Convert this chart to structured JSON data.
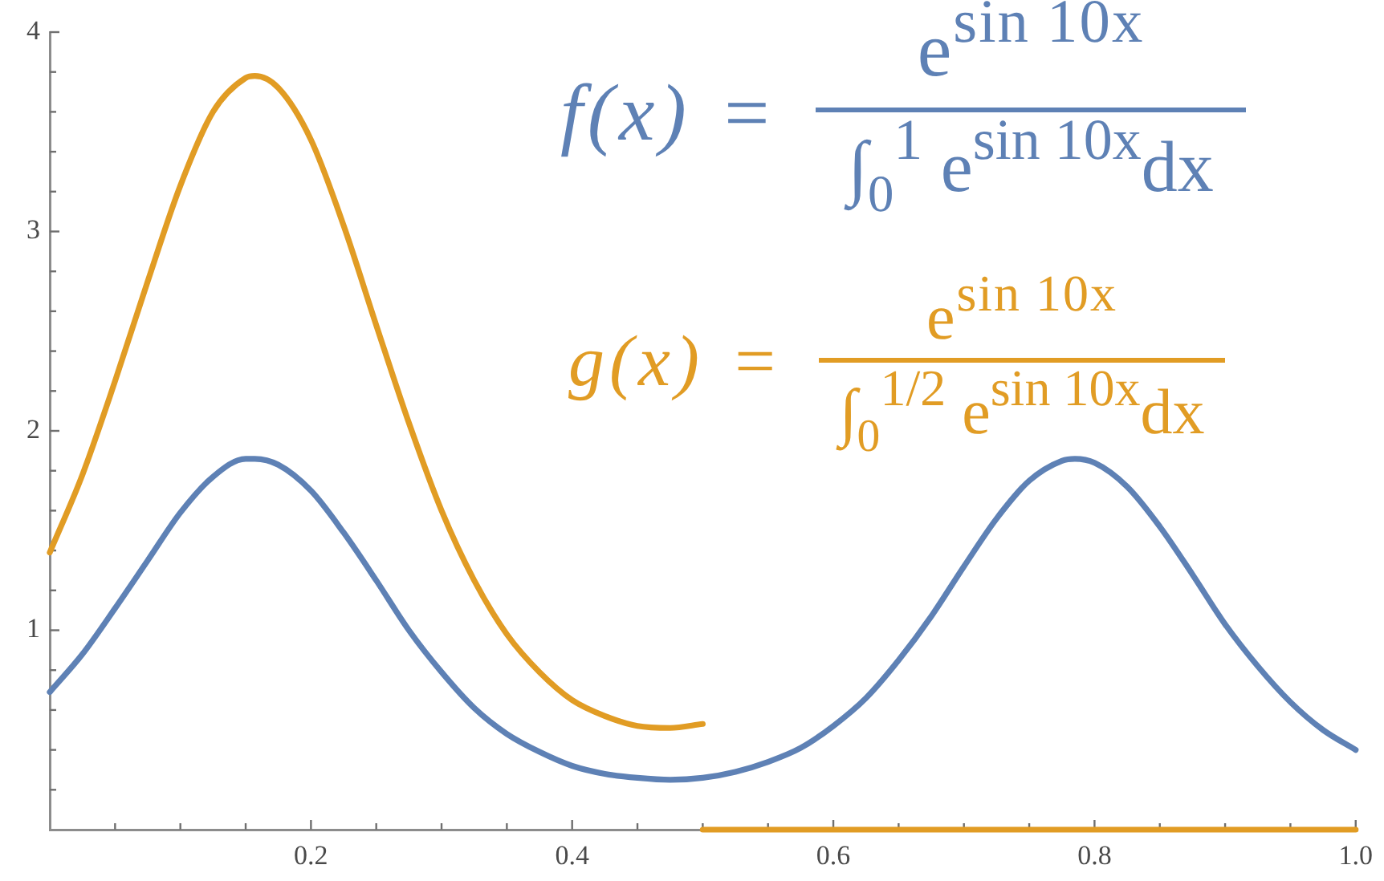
{
  "chart_data": {
    "type": "line",
    "annotations": [
      "f(x) =",
      "e$^{sin 10x}$",
      "∫$_{0}$$^{1}$ e$^{sin 10x}$dx",
      "g(x) =",
      "e$^{sin 10x}$",
      "∫$_{0}$$^{1/2}$ e$^{sin 10x}$dx"
    ],
    "series": [
      {
        "color": "#5e81b5",
        "x": [
          0,
          0.025,
          0.05,
          0.075,
          0.1,
          0.125,
          0.15,
          0.157,
          0.175,
          0.2,
          0.225,
          0.25,
          0.275,
          0.3,
          0.325,
          0.35,
          0.375,
          0.4,
          0.425,
          0.45,
          0.475,
          0.5,
          0.525,
          0.55,
          0.575,
          0.6,
          0.625,
          0.65,
          0.675,
          0.7,
          0.725,
          0.75,
          0.775,
          0.785,
          0.8,
          0.825,
          0.85,
          0.875,
          0.9,
          0.925,
          0.95,
          0.975,
          1
        ],
        "values": [
          0.69,
          0.88,
          1.11,
          1.35,
          1.59,
          1.77,
          1.86,
          1.86,
          1.83,
          1.7,
          1.49,
          1.25,
          1.0,
          0.79,
          0.61,
          0.48,
          0.39,
          0.32,
          0.28,
          0.26,
          0.25,
          0.26,
          0.29,
          0.34,
          0.41,
          0.52,
          0.66,
          0.85,
          1.07,
          1.32,
          1.56,
          1.75,
          1.85,
          1.86,
          1.84,
          1.72,
          1.52,
          1.28,
          1.03,
          0.82,
          0.64,
          0.5,
          0.4
        ]
      },
      {
        "color": "#e19c24",
        "x": [
          0,
          0.025,
          0.05,
          0.075,
          0.1,
          0.125,
          0.15,
          0.157,
          0.175,
          0.2,
          0.225,
          0.25,
          0.275,
          0.3,
          0.325,
          0.35,
          0.375,
          0.4,
          0.425,
          0.45,
          0.475,
          0.5
        ],
        "values": [
          1.39,
          1.78,
          2.25,
          2.75,
          3.23,
          3.6,
          3.77,
          3.78,
          3.72,
          3.46,
          3.03,
          2.53,
          2.04,
          1.6,
          1.25,
          0.98,
          0.79,
          0.65,
          0.57,
          0.52,
          0.51,
          0.53
        ]
      },
      {
        "color": "#e19c24",
        "x": [
          0.5,
          1
        ],
        "values": [
          0,
          0
        ]
      }
    ],
    "xlim": [
      0,
      1
    ],
    "xticks": [
      {
        "value": 0.05,
        "label": null
      },
      {
        "value": 0.1,
        "label": null
      },
      {
        "value": 0.15,
        "label": null
      },
      0.2,
      {
        "value": 0.25,
        "label": null
      },
      {
        "value": 0.3,
        "label": null
      },
      {
        "value": 0.35,
        "label": null
      },
      0.4,
      {
        "value": 0.45,
        "label": null
      },
      {
        "value": 0.5,
        "label": null
      },
      {
        "value": 0.55,
        "label": null
      },
      0.6,
      {
        "value": 0.65,
        "label": null
      },
      {
        "value": 0.7,
        "label": null
      },
      {
        "value": 0.75,
        "label": null
      },
      0.8,
      {
        "value": 0.85,
        "label": null
      },
      {
        "value": 0.9,
        "label": null
      },
      {
        "value": 0.95,
        "label": null
      },
      {
        "value": 1,
        "label": "1.0"
      }
    ],
    "ylim": [
      0,
      4
    ],
    "yticks": [
      {
        "value": 0.2,
        "label": null
      },
      {
        "value": 0.4,
        "label": null
      },
      {
        "value": 0.6,
        "label": null
      },
      {
        "value": 0.8,
        "label": null
      },
      1,
      {
        "value": 1.2,
        "label": null
      },
      {
        "value": 1.4,
        "label": null
      },
      {
        "value": 1.6,
        "label": null
      },
      {
        "value": 1.8,
        "label": null
      },
      2,
      {
        "value": 2.2,
        "label": null
      },
      {
        "value": 2.4,
        "label": null
      },
      {
        "value": 2.6,
        "label": null
      },
      {
        "value": 2.8,
        "label": null
      },
      3,
      {
        "value": 3.2,
        "label": null
      },
      {
        "value": 3.4,
        "label": null
      },
      {
        "value": 3.6,
        "label": null
      },
      {
        "value": 3.8,
        "label": null
      },
      4
    ]
  }
}
